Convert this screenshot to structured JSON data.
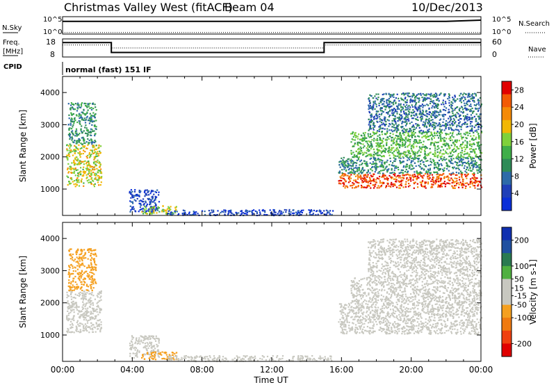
{
  "header": {
    "title": "Christmas Valley West (fitACF)",
    "beam": "Beam 04",
    "date": "10/Dec/2013"
  },
  "labels": {
    "nsky": "N.Sky",
    "nsearch": "N.Search",
    "freq_line1": "Freq.",
    "freq_line2": "[MHz]",
    "nave": "Nave",
    "cpid": "CPID",
    "mode": "normal (fast) 151 IF",
    "xlabel": "Time UT"
  },
  "colors": {
    "power_scale": [
      "#0a2fd8",
      "#1f3fb8",
      "#2d6aa8",
      "#2e8b57",
      "#3fae49",
      "#7fd13b",
      "#f2b705",
      "#f58a07",
      "#f25a05",
      "#e00000"
    ],
    "velocity_scale": [
      "#1030b0",
      "#2050a0",
      "#2a7a50",
      "#50b040",
      "#c8c8c0",
      "#c8c8c0",
      "#f5a020",
      "#f07a10",
      "#f04010",
      "#e00000"
    ]
  },
  "chart_data": [
    {
      "type": "line",
      "name": "noise-panel",
      "x_range": [
        0,
        24
      ],
      "left_axis_ticks": [
        "10^5",
        "10^0"
      ],
      "right_axis_ticks": [
        "10^5",
        "10^0"
      ],
      "series": [
        {
          "name": "N.Sky",
          "style": "solid",
          "x": [
            0,
            2,
            4,
            6,
            8,
            10,
            12,
            14,
            16,
            18,
            20,
            22,
            24
          ],
          "y": [
            4,
            4,
            4,
            4,
            4,
            4,
            4,
            4,
            4,
            4,
            4,
            4,
            4.4
          ]
        },
        {
          "name": "N.Search",
          "style": "dotted",
          "x": [
            0,
            4,
            8,
            12,
            16,
            20,
            24
          ],
          "y": [
            0.5,
            0.5,
            0.5,
            0.5,
            0.5,
            0.5,
            0.5
          ]
        }
      ]
    },
    {
      "type": "line",
      "name": "freq-nave-panel",
      "x_range": [
        0,
        24
      ],
      "left_axis": {
        "label": "Freq. [MHz]",
        "ticks": [
          18,
          8
        ],
        "range": [
          8,
          18
        ]
      },
      "right_axis": {
        "label": "Nave",
        "ticks": [
          60,
          0
        ],
        "range": [
          0,
          60
        ]
      },
      "series": [
        {
          "name": "Freq.",
          "style": "solid",
          "x": [
            0,
            2.8,
            2.8,
            15,
            15,
            24
          ],
          "y": [
            16,
            16,
            10.5,
            10.5,
            16,
            16
          ]
        },
        {
          "name": "Nave",
          "style": "dotted",
          "x": [
            0,
            2.8,
            2.8,
            15,
            15,
            24
          ],
          "y": [
            40,
            40,
            30,
            30,
            40,
            40
          ]
        }
      ]
    },
    {
      "type": "heatmap",
      "name": "power-panel",
      "ylabel": "Slant Range [km]",
      "x_range": [
        0,
        24
      ],
      "ylim": [
        180,
        4500
      ],
      "yticks": [
        1000,
        2000,
        3000,
        4000
      ],
      "colorbar": {
        "label": "Power [dB]",
        "ticks": [
          4,
          8,
          12,
          16,
          20,
          24,
          28
        ],
        "range": [
          0,
          30
        ]
      },
      "regions": [
        {
          "t": [
            0.2,
            2.2
          ],
          "range_km": [
            1100,
            2400
          ],
          "value_db": 18
        },
        {
          "t": [
            0.3,
            1.9
          ],
          "range_km": [
            2400,
            3700
          ],
          "value_db": 11
        },
        {
          "t": [
            3.8,
            5.5
          ],
          "range_km": [
            300,
            1000
          ],
          "value_db": 4
        },
        {
          "t": [
            4.5,
            6.5
          ],
          "range_km": [
            250,
            500
          ],
          "value_db": 16
        },
        {
          "t": [
            6.0,
            15.5
          ],
          "range_km": [
            200,
            380
          ],
          "value_db": 4
        },
        {
          "t": [
            15.8,
            24.0
          ],
          "range_km": [
            1050,
            1500
          ],
          "value_db": 26
        },
        {
          "t": [
            15.8,
            24.0
          ],
          "range_km": [
            1500,
            2000
          ],
          "value_db": 10
        },
        {
          "t": [
            16.5,
            24.0
          ],
          "range_km": [
            2000,
            2800
          ],
          "value_db": 14
        },
        {
          "t": [
            17.5,
            24.0
          ],
          "range_km": [
            2800,
            4000
          ],
          "value_db": 8
        }
      ]
    },
    {
      "type": "heatmap",
      "name": "velocity-panel",
      "ylabel": "Slant Range [km]",
      "xlabel": "Time UT",
      "x_range": [
        0,
        24
      ],
      "xticks": [
        "00:00",
        "04:00",
        "08:00",
        "12:00",
        "16:00",
        "20:00",
        "00:00"
      ],
      "ylim": [
        180,
        4500
      ],
      "yticks": [
        1000,
        2000,
        3000,
        4000
      ],
      "colorbar": {
        "label": "Velocity [m s-1]",
        "ticks": [
          200,
          100,
          50,
          15,
          -15,
          -50,
          -100,
          -200
        ],
        "range": [
          -250,
          250
        ]
      },
      "regions": [
        {
          "t": [
            0.2,
            2.2
          ],
          "range_km": [
            1100,
            2400
          ],
          "value_ms": 0
        },
        {
          "t": [
            0.3,
            1.9
          ],
          "range_km": [
            2400,
            3700
          ],
          "value_ms": -60
        },
        {
          "t": [
            3.8,
            5.5
          ],
          "range_km": [
            300,
            1000
          ],
          "value_ms": 0
        },
        {
          "t": [
            4.5,
            6.5
          ],
          "range_km": [
            250,
            500
          ],
          "value_ms": -70
        },
        {
          "t": [
            6.0,
            15.5
          ],
          "range_km": [
            200,
            380
          ],
          "value_ms": 40
        },
        {
          "t": [
            15.8,
            24.0
          ],
          "range_km": [
            1050,
            2000
          ],
          "value_ms": 0
        },
        {
          "t": [
            16.5,
            24.0
          ],
          "range_km": [
            2000,
            2800
          ],
          "value_ms": -20
        },
        {
          "t": [
            17.5,
            24.0
          ],
          "range_km": [
            2800,
            4000
          ],
          "value_ms": -40
        }
      ]
    }
  ]
}
